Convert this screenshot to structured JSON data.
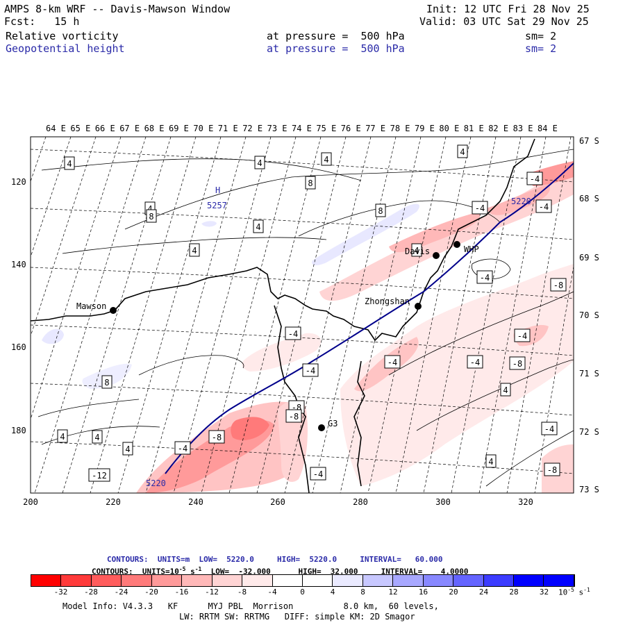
{
  "header": {
    "title": "AMPS 8-km WRF -- Davis-Mawson Window",
    "init": "Init: 12 UTC Fri 28 Nov 25",
    "fcst": "Fcst:   15 h",
    "valid": "Valid: 03 UTC Sat 29 Nov 25",
    "field1": "Relative vorticity",
    "field1_level": "at pressure =  500 hPa",
    "field1_sm": "sm= 2",
    "field2": "Geopotential height",
    "field2_level": "at pressure =  500 hPa",
    "field2_sm": "sm= 2"
  },
  "map": {
    "top_lon_labels": [
      "64 E",
      "65 E",
      "66 E",
      "67 E",
      "68 E",
      "69 E",
      "70 E",
      "71 E",
      "72 E",
      "73 E",
      "74 E",
      "75 E",
      "76 E",
      "77 E",
      "78 E",
      "79 E",
      "80 E",
      "81 E",
      "82 E",
      "83 E",
      "84 E"
    ],
    "right_lat_labels": [
      "67 S",
      "68 S",
      "69 S",
      "70 S",
      "71 S",
      "72 S",
      "73 S"
    ],
    "left_y_labels": [
      "120",
      "140",
      "160",
      "180"
    ],
    "bottom_x_labels": [
      "200",
      "220",
      "240",
      "260",
      "280",
      "300",
      "320"
    ],
    "stations": [
      {
        "name": "Mawson"
      },
      {
        "name": "Davis"
      },
      {
        "name": "Zhongshan"
      },
      {
        "name": "WHP"
      },
      {
        "name": "G3"
      }
    ],
    "high_label": "H",
    "high_value": "5257",
    "height_contour_labels": [
      "5220",
      "5220"
    ],
    "vort_labels": [
      "4",
      "4",
      "4",
      "4",
      "4",
      "8",
      "8",
      "4",
      "8",
      "-4",
      "-8",
      "-4",
      "-4",
      "-4",
      "-8",
      "-4",
      "-4",
      "-8",
      "-4",
      "-4",
      "-4",
      "-8",
      "4",
      "4",
      "4",
      "4",
      "4",
      "-12",
      "-8",
      "-4",
      "-4",
      "4",
      "-4",
      "-8",
      "4",
      "8"
    ]
  },
  "contours_info": {
    "line1": "CONTOURS:  UNITS=m  LOW=  5220.0     HIGH=  5220.0     INTERVAL=   60.000",
    "line2": "CONTOURS:  UNITS=10",
    "line2_exp": "-5",
    "line2_rest": " s",
    "line2_exp2": "-1",
    "line2_tail": "  LOW=  -32.000      HIGH=  32.000     INTERVAL=    4.0000"
  },
  "colorbar": {
    "labels": [
      "-32",
      "-28",
      "-24",
      "-20",
      "-16",
      "-12",
      "-8",
      "-4",
      "0",
      "4",
      "8",
      "12",
      "16",
      "20",
      "24",
      "28",
      "32"
    ],
    "unit": "10",
    "unit_exp": "-5",
    "unit_s": " s",
    "unit_exp2": "-1",
    "colors": [
      "#ff0000",
      "#ff3a3a",
      "#ff5c5c",
      "#ff7a7a",
      "#ff9a9a",
      "#ffb8b8",
      "#ffd4d4",
      "#ffeaea",
      "#ffffff",
      "#ffffff",
      "#eaeaff",
      "#c8c8ff",
      "#a8a8ff",
      "#8888ff",
      "#6464ff",
      "#3c3cff",
      "#0000ff"
    ]
  },
  "model_info": {
    "line1": "Model Info: V4.3.3   KF      MYJ PBL  Morrison          8.0 km,  60 levels,",
    "line2": "LW: RRTM SW: RRTMG   DIFF: simple KM: 2D Smagor"
  }
}
